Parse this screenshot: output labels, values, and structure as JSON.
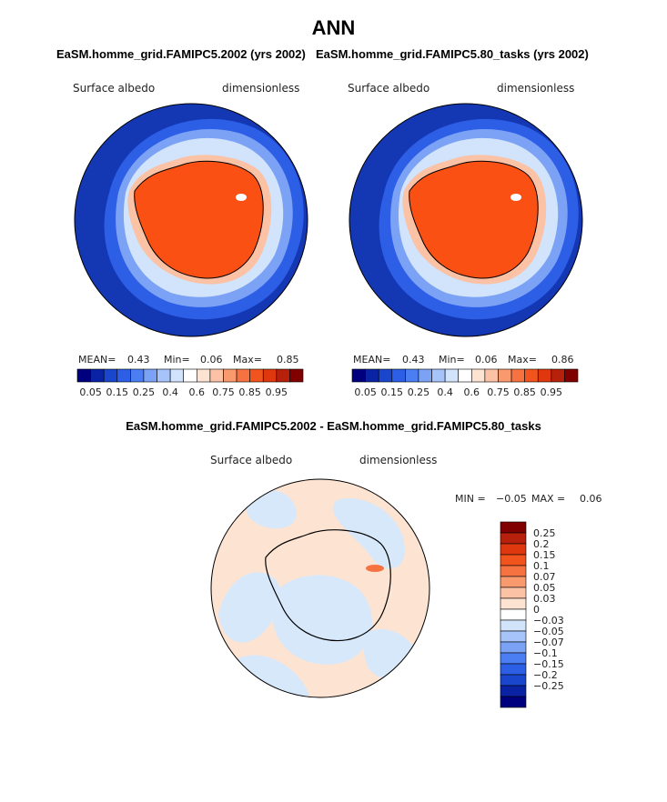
{
  "title": "ANN",
  "colors": {
    "ocean_deep": "#1438b4",
    "ice_orange": "#fa5014",
    "diff_pos": "#fde3d2",
    "diff_neg": "#d7e8fa"
  },
  "panels": [
    {
      "title": "EaSM.homme_grid.FAMIPC5.2002 (yrs 2002)",
      "variable": "Surface albedo",
      "units": "dimensionless",
      "stats": {
        "mean_label": "MEAN=",
        "mean": "0.43",
        "min_label": "Min=",
        "min": "0.06",
        "max_label": "Max=",
        "max": "0.85"
      }
    },
    {
      "title": "EaSM.homme_grid.FAMIPC5.80_tasks (yrs 2002)",
      "variable": "Surface albedo",
      "units": "dimensionless",
      "stats": {
        "mean_label": "MEAN=",
        "mean": "0.43",
        "min_label": "Min=",
        "min": "0.06",
        "max_label": "Max=",
        "max": "0.86"
      }
    }
  ],
  "colorbar_h": {
    "colors": [
      "#00007f",
      "#0a23a5",
      "#1a46cd",
      "#2c5ee6",
      "#4b7ef2",
      "#7ca2f6",
      "#a6c4fa",
      "#d2e4fb",
      "#ffffff",
      "#fde3d2",
      "#fbc2a5",
      "#f9996e",
      "#f67341",
      "#f2541e",
      "#e0380e",
      "#b7200a",
      "#800000"
    ],
    "tick_labels": [
      "0.05",
      "0.15",
      "0.25",
      "0.4",
      "0.6",
      "0.75",
      "0.85",
      "0.95"
    ]
  },
  "difference": {
    "title": "EaSM.homme_grid.FAMIPC5.2002 - EaSM.homme_grid.FAMIPC5.80_tasks",
    "variable": "Surface albedo",
    "units": "dimensionless",
    "stats": {
      "min_label": "MIN =",
      "min": "−0.05",
      "max_label": "MAX =",
      "max": "0.06"
    },
    "colorbar_v": {
      "colors": [
        "#800000",
        "#b7200a",
        "#e0380e",
        "#f2541e",
        "#f67341",
        "#f9996e",
        "#fbc2a5",
        "#fde3d2",
        "#ffffff",
        "#d2e4fb",
        "#a6c4fa",
        "#7ca2f6",
        "#4b7ef2",
        "#2c5ee6",
        "#1a46cd",
        "#0a23a5",
        "#00007f"
      ],
      "tick_labels": [
        "0.25",
        "0.2",
        "0.15",
        "0.1",
        "0.07",
        "0.05",
        "0.03",
        "0",
        "−0.03",
        "−0.05",
        "−0.07",
        "−0.1",
        "−0.15",
        "−0.2",
        "−0.25"
      ]
    }
  }
}
